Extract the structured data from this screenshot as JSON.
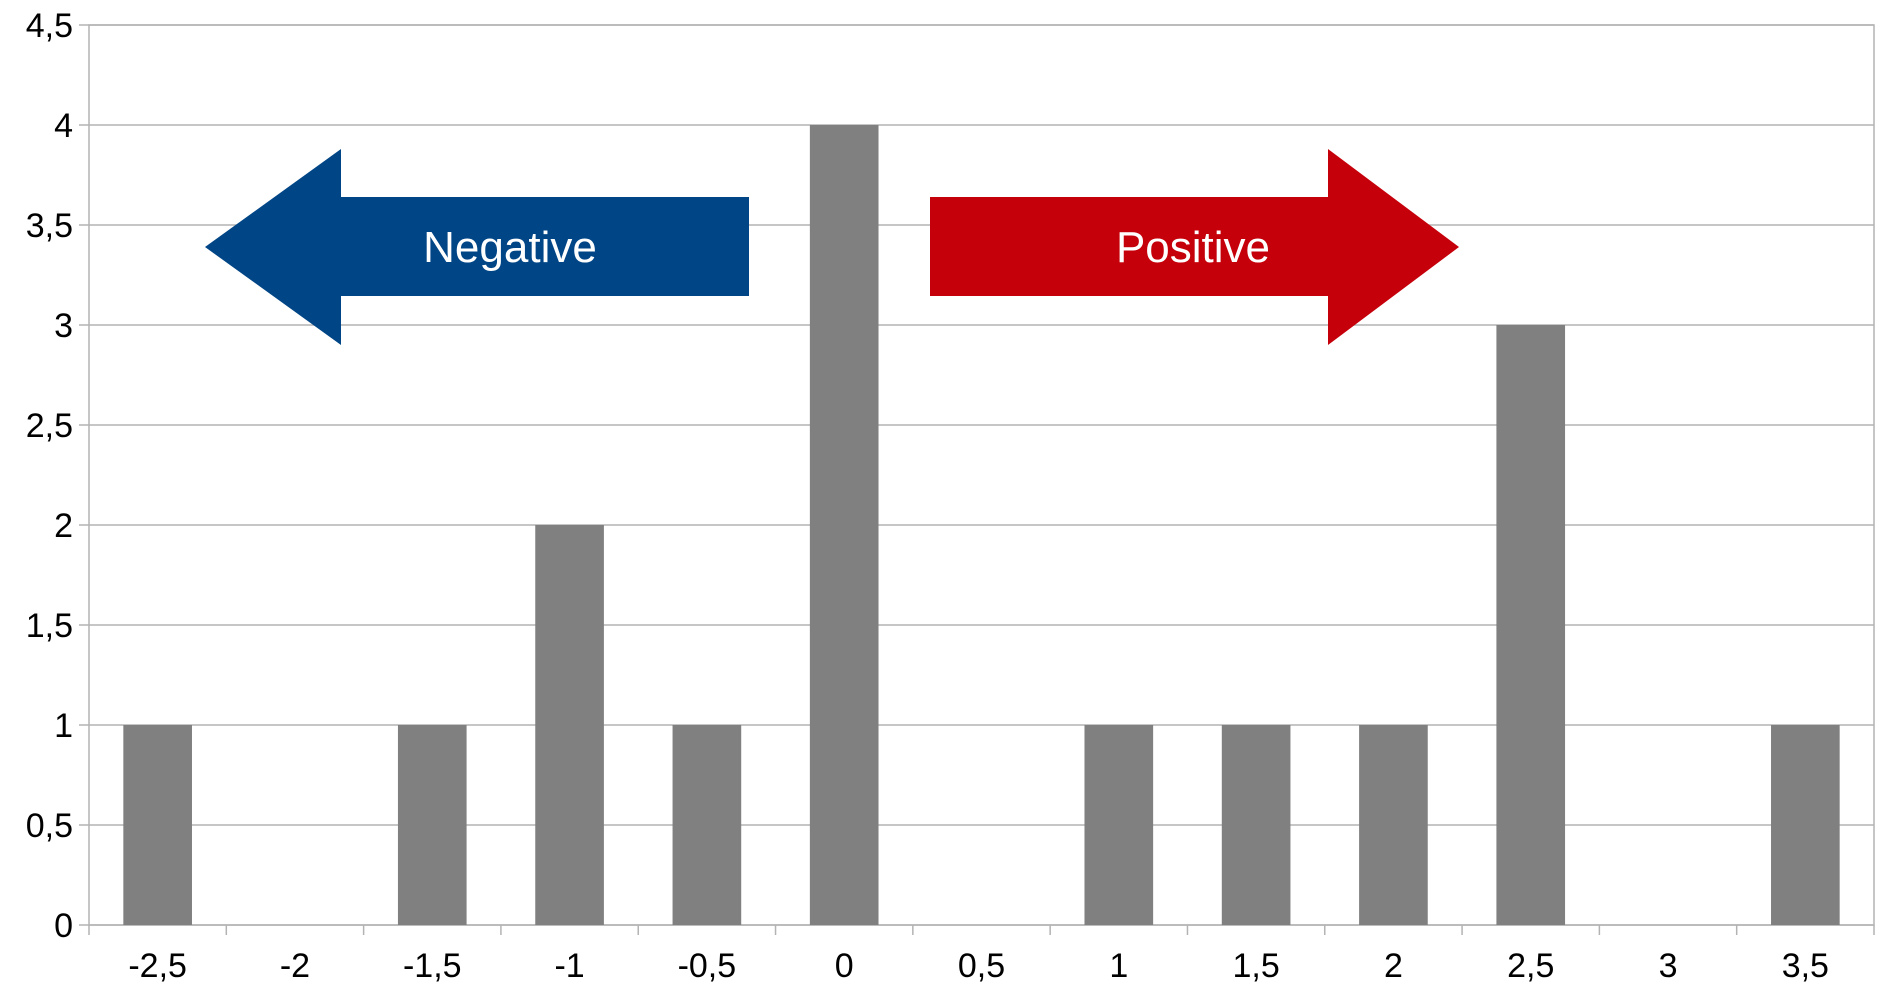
{
  "chart_data": {
    "type": "bar",
    "title": "",
    "xlabel": "",
    "ylabel": "",
    "categories": [
      "-2,5",
      "-2",
      "-1,5",
      "-1",
      "-0,5",
      "0",
      "0,5",
      "1",
      "1,5",
      "2",
      "2,5",
      "3",
      "3,5"
    ],
    "values": [
      1,
      0,
      1,
      2,
      1,
      4,
      0,
      1,
      1,
      1,
      3,
      0,
      1
    ],
    "ylim": [
      0,
      4.5
    ],
    "yticks": [
      0,
      0.5,
      1,
      1.5,
      2,
      2.5,
      3,
      3.5,
      4,
      4.5
    ],
    "ytick_labels": [
      "0",
      "0,5",
      "1",
      "1,5",
      "2",
      "2,5",
      "3",
      "3,5",
      "4",
      "4,5"
    ],
    "grid": true,
    "bar_color": "#808080",
    "annotations": [
      {
        "text": "Negative",
        "shape": "arrow-left",
        "color": "#004586"
      },
      {
        "text": "Positive",
        "shape": "arrow-right",
        "color": "#c5000b"
      }
    ]
  }
}
